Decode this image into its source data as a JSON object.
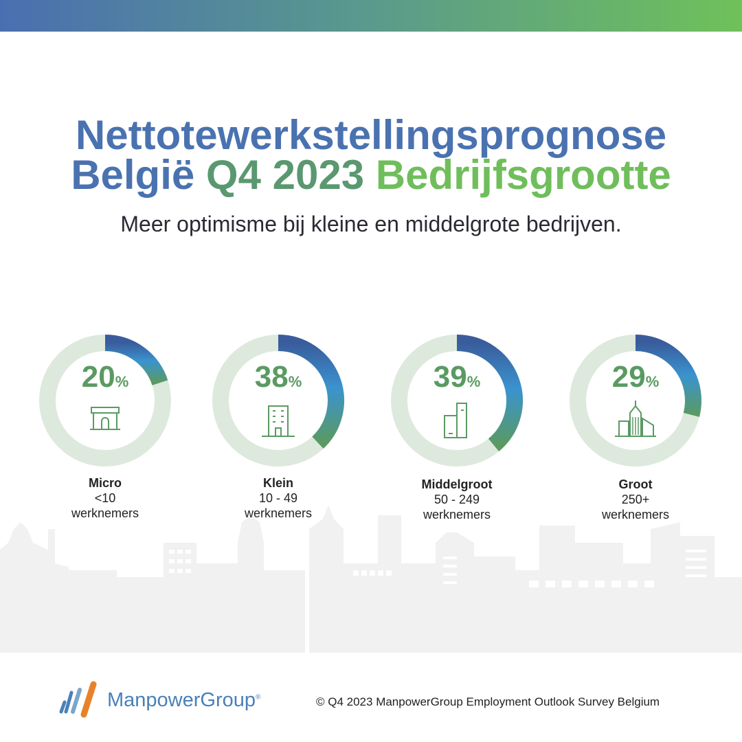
{
  "title": {
    "line1": "Nettotewerkstellingsprognose",
    "line2_part1": "België",
    "line2_part2": "Q4 2023",
    "line2_part3": "Bedrijfsgrootte"
  },
  "subtitle": "Meer optimisme bij kleine en middelgrote bedrijven.",
  "colors": {
    "track": "#dde9dc",
    "ring_start": "#3a5c9c",
    "ring_mid": "#3a93cf",
    "ring_end": "#5a9a62",
    "percent_text": "#5a9a62"
  },
  "chart_data": [
    {
      "type": "pie",
      "variant": "donut",
      "category": "Micro",
      "range": "<10",
      "unit": "werknemers",
      "value": 20,
      "value_label": "20",
      "percent_sign": "%",
      "icon": "shop-icon"
    },
    {
      "type": "pie",
      "variant": "donut",
      "category": "Klein",
      "range": "10 - 49",
      "unit": "werknemers",
      "value": 38,
      "value_label": "38",
      "percent_sign": "%",
      "icon": "office-building-icon"
    },
    {
      "type": "pie",
      "variant": "donut",
      "category": "Middelgroot",
      "range": "50 - 249",
      "unit": "werknemers",
      "value": 39,
      "value_label": "39",
      "percent_sign": "%",
      "icon": "twin-tower-icon"
    },
    {
      "type": "pie",
      "variant": "donut",
      "category": "Groot",
      "range": "250+",
      "unit": "werknemers",
      "value": 29,
      "value_label": "29",
      "percent_sign": "%",
      "icon": "skyscraper-icon"
    }
  ],
  "footer": {
    "brand": "ManpowerGroup",
    "brand_mark": "®",
    "copyright": "© Q4 2023 ManpowerGroup Employment Outlook Survey Belgium"
  }
}
